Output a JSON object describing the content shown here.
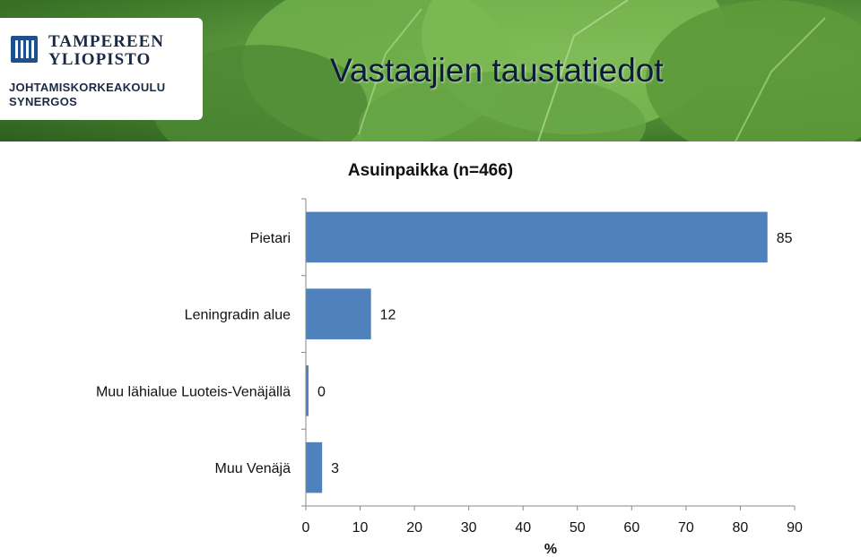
{
  "header": {
    "title": "Vastaajien taustatiedot",
    "logo": {
      "line1": "TAMPEREEN",
      "line2": "YLIOPISTO",
      "line3": "JOHTAMISKORKEAKOULU",
      "line4": "SYNERGOS"
    },
    "background": "leaf-photo"
  },
  "chart_data": {
    "type": "bar",
    "orientation": "horizontal",
    "title": "Asuinpaikka (n=466)",
    "categories": [
      "Pietari",
      "Leningradin alue",
      "Muu lähialue Luoteis-Venäjällä",
      "Muu Venäjä"
    ],
    "values": [
      85,
      12,
      0,
      3
    ],
    "data_labels": [
      "85",
      "12",
      "0",
      "3"
    ],
    "xlabel": "%",
    "xlim": [
      0,
      90
    ],
    "xticks": [
      0,
      10,
      20,
      30,
      40,
      50,
      60,
      70,
      80,
      90
    ],
    "grid": false,
    "legend": "none",
    "bar_color": "#4f81bd"
  }
}
